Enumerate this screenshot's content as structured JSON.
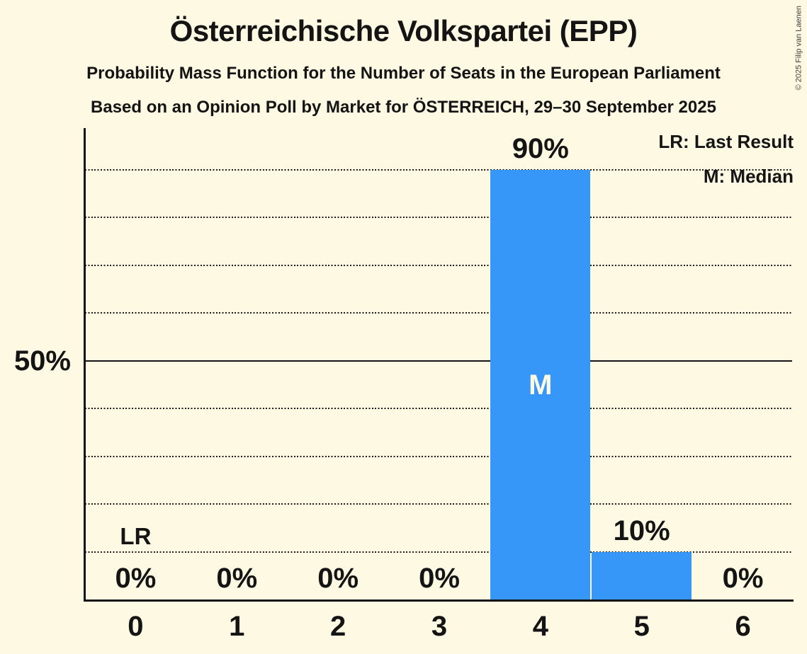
{
  "page": {
    "background_color": "#FDF9E3",
    "ink_color": "#141414"
  },
  "header": {
    "title": "Österreichische Volkspartei (EPP)",
    "subtitle1": "Probability Mass Function for the Number of Seats in the European Parliament",
    "subtitle2": "Based on an Opinion Poll by Market for ÖSTERREICH, 29–30 September 2025"
  },
  "legend": {
    "last_result": "LR: Last Result",
    "median": "M: Median"
  },
  "copyright": "© 2025 Filip van Laenen",
  "chart_data": {
    "type": "bar",
    "title": "Probability Mass Function for the Number of Seats in the European Parliament",
    "categories": [
      "0",
      "1",
      "2",
      "3",
      "4",
      "5",
      "6"
    ],
    "values": [
      0,
      0,
      0,
      0,
      90,
      10,
      0
    ],
    "value_labels": [
      "0%",
      "0%",
      "0%",
      "0%",
      "90%",
      "10%",
      "0%"
    ],
    "y_axis": {
      "ylim": [
        0,
        100
      ],
      "tick_pct": 50,
      "tick_label": "50%",
      "dotted_gridlines_pct": [
        10,
        20,
        30,
        40,
        60,
        70,
        80,
        90
      ],
      "solid_gridline_pct": 50,
      "grid": true
    },
    "legend_position": "top-right",
    "markers": {
      "median": {
        "category_index": 4,
        "label": "M"
      },
      "last_result": {
        "category_index": 0,
        "label": "LR"
      }
    },
    "bar_color": "#3797F9",
    "median_label_color": "#FDF9E3"
  }
}
